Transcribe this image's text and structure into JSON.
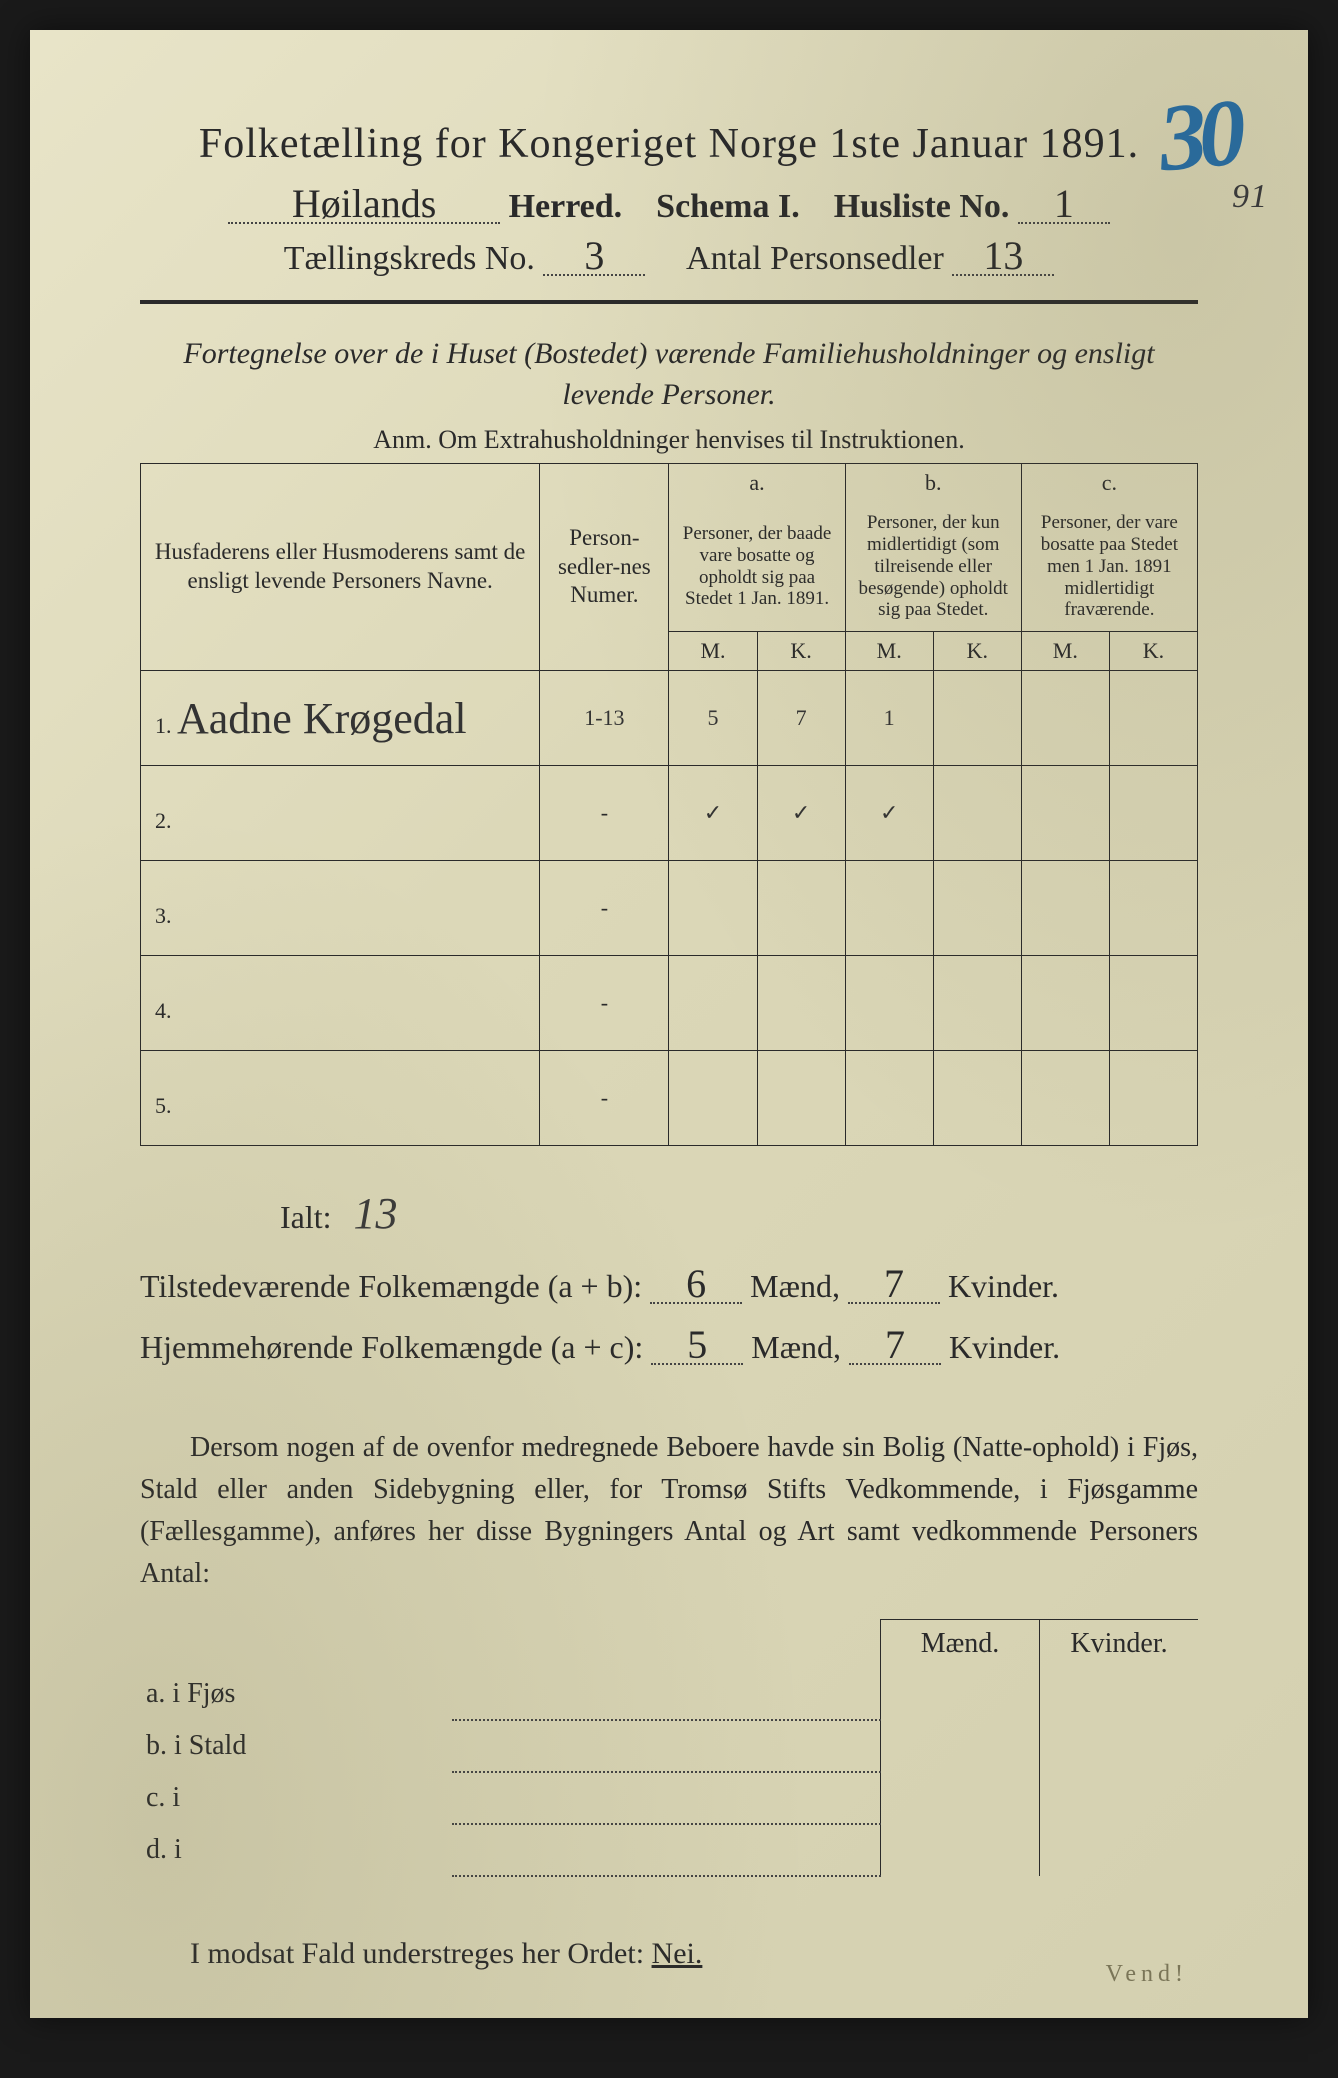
{
  "header": {
    "title": "Folketælling for Kongeriget Norge 1ste Januar 1891.",
    "stamp_number": "30",
    "stamp_side": "91",
    "herred_value": "Høilands",
    "herred_label": "Herred.",
    "schema_label": "Schema I.",
    "husliste_label": "Husliste No.",
    "husliste_value": "1",
    "kreds_label": "Tællingskreds No.",
    "kreds_value": "3",
    "antal_label": "Antal Personsedler",
    "antal_value": "13"
  },
  "subtitle": "Fortegnelse over de i Huset (Bostedet) værende Familiehusholdninger og ensligt levende Personer.",
  "anm": "Anm.  Om Extrahusholdninger henvises til Instruktionen.",
  "table": {
    "col_name": "Husfaderens eller Husmoderens samt de ensligt levende Personers Navne.",
    "col_numer": "Person-sedler-nes Numer.",
    "col_a_top": "a.",
    "col_a": "Personer, der baade vare bosatte og opholdt sig paa Stedet 1 Jan. 1891.",
    "col_b_top": "b.",
    "col_b": "Personer, der kun midlertidigt (som tilreisende eller besøgende) opholdt sig paa Stedet.",
    "col_c_top": "c.",
    "col_c": "Personer, der vare bosatte paa Stedet men 1 Jan. 1891 midlertidigt fraværende.",
    "mk_m": "M.",
    "mk_k": "K.",
    "rows": [
      {
        "n": "1.",
        "name": "Aadne Krøgedal",
        "numer": "1-13",
        "a_m": "5",
        "a_k": "7",
        "b_m": "1",
        "b_k": "",
        "c_m": "",
        "c_k": ""
      },
      {
        "n": "2.",
        "name": "",
        "numer": "-",
        "a_m": "✓",
        "a_k": "✓",
        "b_m": "✓",
        "b_k": "",
        "c_m": "",
        "c_k": ""
      },
      {
        "n": "3.",
        "name": "",
        "numer": "-",
        "a_m": "",
        "a_k": "",
        "b_m": "",
        "b_k": "",
        "c_m": "",
        "c_k": ""
      },
      {
        "n": "4.",
        "name": "",
        "numer": "-",
        "a_m": "",
        "a_k": "",
        "b_m": "",
        "b_k": "",
        "c_m": "",
        "c_k": ""
      },
      {
        "n": "5.",
        "name": "",
        "numer": "-",
        "a_m": "",
        "a_k": "",
        "b_m": "",
        "b_k": "",
        "c_m": "",
        "c_k": ""
      }
    ]
  },
  "totals": {
    "ialt_label": "Ialt:",
    "ialt_value": "13",
    "line1_label": "Tilstedeværende Folkemængde (a + b):",
    "line1_m": "6",
    "line1_k": "7",
    "line2_label": "Hjemmehørende Folkemængde (a + c):",
    "line2_m": "5",
    "line2_k": "7",
    "maend": "Mænd,",
    "kvinder": "Kvinder."
  },
  "paragraph": "Dersom nogen af de ovenfor medregnede Beboere havde sin Bolig (Natte-ophold) i Fjøs, Stald eller anden Sidebygning eller, for Tromsø Stifts Vedkommende, i Fjøsgamme (Fællesgamme), anføres her disse Bygningers Antal og Art samt vedkommende Personers Antal:",
  "bldg": {
    "maend": "Mænd.",
    "kvinder": "Kvinder.",
    "rows": [
      {
        "label": "a.  i      Fjøs"
      },
      {
        "label": "b.  i      Stald"
      },
      {
        "label": "c.  i"
      },
      {
        "label": "d.  i"
      }
    ]
  },
  "nei_line": "I modsat Fald understreges her Ordet:",
  "nei_word": "Nei.",
  "vend": "Vend!",
  "colors": {
    "paper": "#e0dcbf",
    "ink": "#2a2a2a",
    "stamp": "#2a6a9a"
  }
}
